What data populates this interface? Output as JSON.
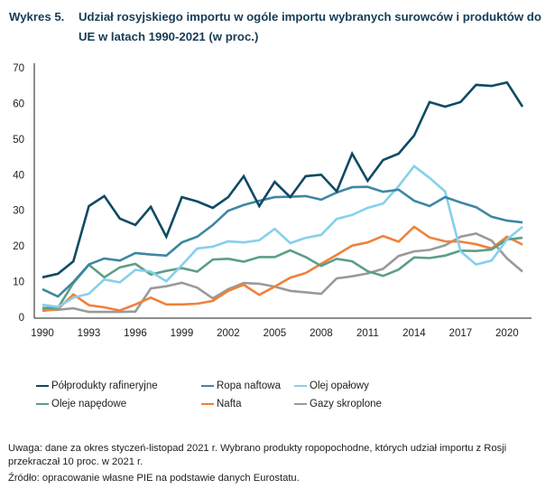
{
  "title": {
    "number": "Wykres 5.",
    "text": "Udział rosyjskiego importu w ogóle importu wybranych surowców i produktów do UE w latach 1990-2021 (w proc.)"
  },
  "chart_data": {
    "type": "line",
    "title": "Udział rosyjskiego importu w ogóle importu wybranych surowców i produktów do UE w latach 1990-2021 (w proc.)",
    "xlabel": "",
    "ylabel": "",
    "x": [
      1990,
      1991,
      1992,
      1993,
      1994,
      1995,
      1996,
      1997,
      1998,
      1999,
      2000,
      2001,
      2002,
      2003,
      2004,
      2005,
      2006,
      2007,
      2008,
      2009,
      2010,
      2011,
      2012,
      2013,
      2014,
      2015,
      2016,
      2017,
      2018,
      2019,
      2020,
      2021
    ],
    "xticks": [
      "1990",
      "1993",
      "1996",
      "1999",
      "2002",
      "2005",
      "2008",
      "2011",
      "2014",
      "2017",
      "2020"
    ],
    "yticks": [
      "0",
      "10",
      "20",
      "30",
      "40",
      "50",
      "60",
      "70"
    ],
    "ylim": [
      0,
      70
    ],
    "xlim": [
      1990,
      2021
    ],
    "grid": false,
    "legend_position": "bottom",
    "series": [
      {
        "name": "Półprodukty rafineryjne",
        "color": "#0f4a63",
        "values": [
          11.2,
          12.2,
          15.7,
          31.2,
          34.0,
          27.7,
          25.9,
          31.0,
          22.6,
          33.7,
          32.5,
          30.7,
          33.7,
          39.6,
          31.2,
          38.0,
          33.7,
          39.6,
          40.0,
          35.3,
          45.9,
          38.3,
          44.1,
          45.9,
          51.0,
          60.4,
          59.1,
          60.4,
          65.2,
          64.9,
          65.9,
          59.1
        ]
      },
      {
        "name": "Ropa naftowa",
        "color": "#3f86a3",
        "values": [
          7.9,
          5.8,
          9.9,
          14.8,
          16.5,
          15.9,
          18.0,
          17.6,
          17.3,
          21.0,
          22.6,
          25.9,
          29.9,
          31.5,
          32.7,
          33.7,
          33.8,
          34.0,
          33.0,
          35.0,
          36.5,
          36.6,
          35.2,
          35.8,
          32.7,
          31.2,
          33.7,
          32.2,
          30.9,
          28.2,
          27.1,
          26.6
        ]
      },
      {
        "name": "Olej opałowy",
        "color": "#86cfed",
        "values": [
          3.5,
          2.9,
          5.5,
          6.6,
          10.6,
          9.8,
          13.3,
          12.8,
          10.1,
          14.6,
          19.3,
          19.8,
          21.3,
          21.0,
          21.6,
          24.8,
          20.8,
          22.3,
          23.1,
          27.6,
          28.7,
          30.7,
          31.9,
          36.8,
          42.4,
          39.1,
          35.3,
          18.5,
          14.8,
          15.9,
          21.8,
          25.4
        ]
      },
      {
        "name": "Oleje napędowe",
        "color": "#5b9f86",
        "values": [
          2.6,
          2.6,
          9.6,
          14.7,
          11.2,
          14.0,
          15.0,
          12.0,
          13.0,
          13.8,
          12.8,
          16.2,
          16.4,
          15.6,
          16.9,
          16.9,
          18.8,
          16.9,
          14.4,
          16.4,
          15.7,
          12.9,
          11.6,
          13.4,
          16.8,
          16.6,
          17.3,
          18.7,
          18.6,
          19.0,
          21.8,
          22.3
        ]
      },
      {
        "name": "Nafta",
        "color": "#f0813a",
        "values": [
          1.8,
          2.3,
          6.4,
          3.4,
          2.8,
          1.9,
          3.6,
          5.5,
          3.6,
          3.6,
          3.8,
          4.6,
          7.4,
          9.1,
          6.3,
          8.6,
          11.1,
          12.4,
          15.0,
          17.5,
          20.1,
          21.0,
          22.8,
          21.2,
          25.4,
          22.4,
          21.3,
          21.2,
          20.5,
          19.3,
          22.6,
          20.4
        ]
      },
      {
        "name": "Gazy skroplone",
        "color": "#9a9a9a",
        "values": [
          2.0,
          2.1,
          2.5,
          1.5,
          1.5,
          1.5,
          1.6,
          8.1,
          8.7,
          9.7,
          8.3,
          5.3,
          7.9,
          9.6,
          9.4,
          8.6,
          7.4,
          7.0,
          6.6,
          10.9,
          11.5,
          12.3,
          13.6,
          17.2,
          18.5,
          18.9,
          20.2,
          22.6,
          23.5,
          21.5,
          16.5,
          12.8
        ]
      }
    ]
  },
  "legend": [
    {
      "label": "Półprodukty rafineryjne",
      "color": "#0f4a63"
    },
    {
      "label": "Ropa naftowa",
      "color": "#3f86a3"
    },
    {
      "label": "Olej opałowy",
      "color": "#86cfed"
    },
    {
      "label": "Oleje napędowe",
      "color": "#5b9f86"
    },
    {
      "label": "Nafta",
      "color": "#f0813a"
    },
    {
      "label": "Gazy skroplone",
      "color": "#9a9a9a"
    }
  ],
  "notes": {
    "uwaga": "Uwaga: dane za okres styczeń-listopad 2021 r. Wybrano produkty ropopochodne, których udział importu z Rosji przekraczał 10 proc. w 2021 r.",
    "zrodlo": "Źródło: opracowanie własne PIE na podstawie danych Eurostatu."
  }
}
